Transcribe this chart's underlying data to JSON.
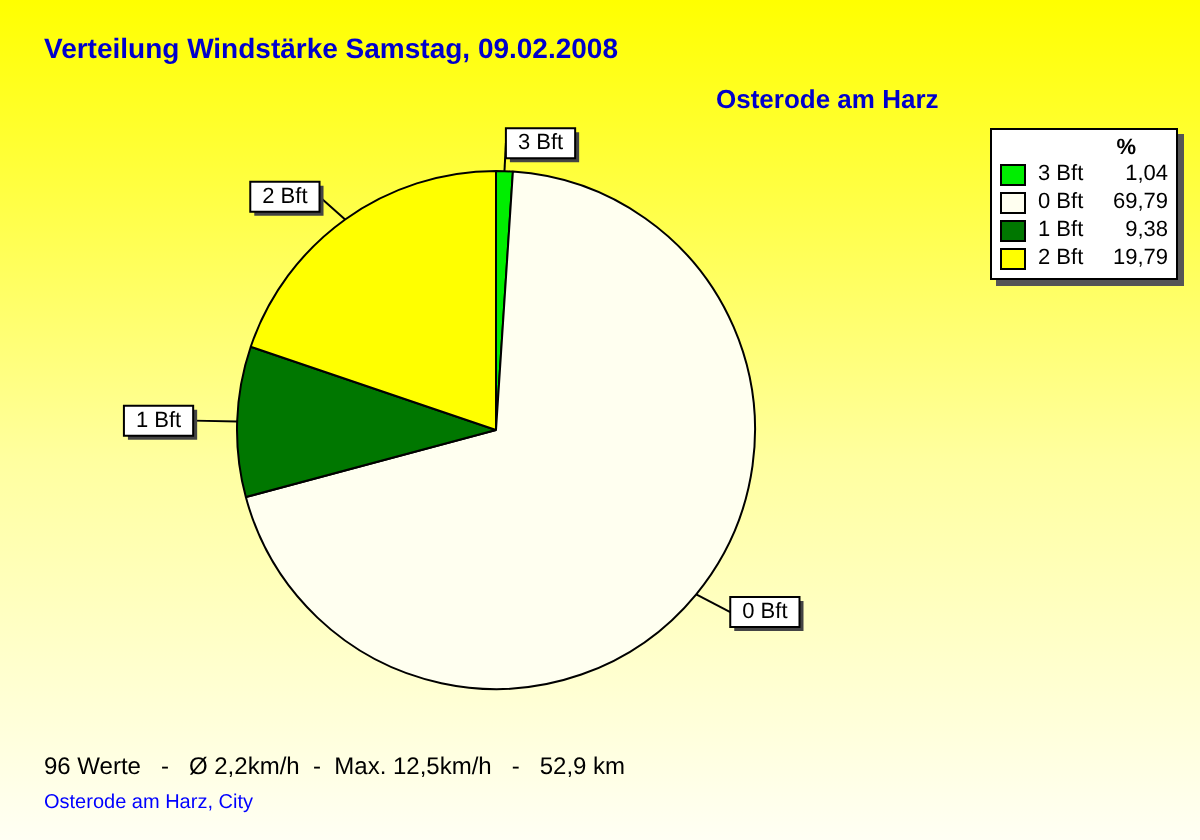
{
  "chart_data": {
    "type": "pie",
    "title": "Verteilung Windstärke  Samstag, 09.02.2008",
    "subtitle": "Osterode am Harz",
    "legend_title": "%",
    "legend": "top right",
    "categories": [
      "3 Bft",
      "0 Bft",
      "1 Bft",
      "2 Bft"
    ],
    "values": [
      1.04,
      69.79,
      9.38,
      19.79
    ],
    "value_labels": [
      "1,04",
      "69,79",
      "9,38",
      "19,79"
    ],
    "colors": [
      "#00ee00",
      "#fffff0",
      "#007700",
      "#ffff00"
    ],
    "annotations": [
      "96 Werte   -   Ø 2,2km/h  -  Max. 12,5km/h   -   52,9 km",
      "Osterode am Harz, City"
    ]
  }
}
